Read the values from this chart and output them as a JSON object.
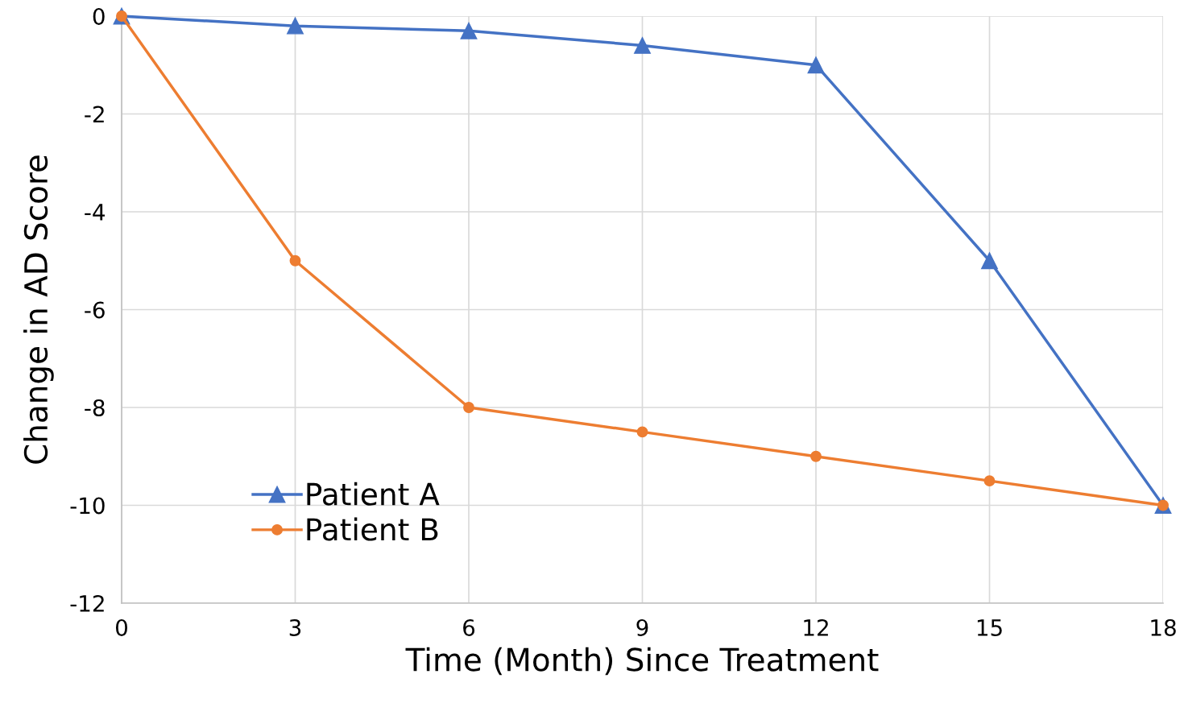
{
  "chart_data": {
    "type": "line",
    "xlabel": "Time (Month) Since Treatment",
    "ylabel": "Change in AD Score",
    "x": [
      0,
      3,
      6,
      9,
      12,
      15,
      18
    ],
    "series": [
      {
        "name": "Patient A",
        "color": "#4472c4",
        "marker": "triangle",
        "values": [
          0,
          -0.2,
          -0.3,
          -0.6,
          -1,
          -5,
          -10
        ]
      },
      {
        "name": "Patient B",
        "color": "#ed7d31",
        "marker": "circle",
        "values": [
          0,
          -5,
          -8,
          -8.5,
          -9,
          -9.5,
          -10
        ]
      }
    ],
    "xlim": [
      0,
      18
    ],
    "xticks": [
      0,
      3,
      6,
      9,
      12,
      15,
      18
    ],
    "ylim": [
      -12,
      0
    ],
    "yticks": [
      0,
      -2,
      -4,
      -6,
      -8,
      -10,
      -12
    ],
    "grid": true,
    "legend": "bottom left",
    "line_style": "solid"
  }
}
